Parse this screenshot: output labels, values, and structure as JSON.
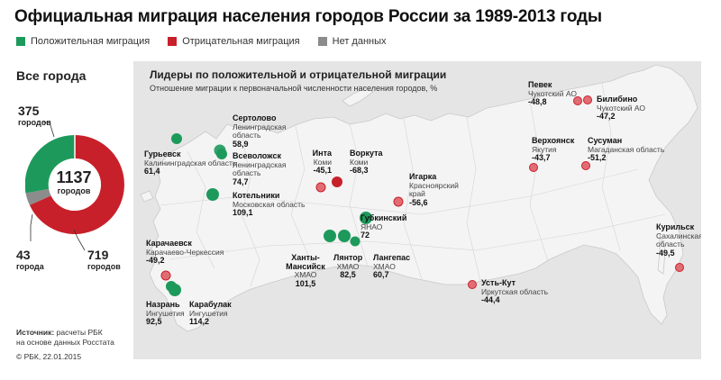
{
  "title": "Официальная миграция населения городов России за 1989-2013 годы",
  "legend": [
    {
      "label": "Положительная миграция",
      "color": "#1d9a5b"
    },
    {
      "label": "Отрицательная миграция",
      "color": "#c8202a"
    },
    {
      "label": "Нет данных",
      "color": "#8c8c8c"
    }
  ],
  "all_cities": {
    "title": "Все города",
    "total": "1137",
    "total_label": "городов",
    "positive": {
      "value": "375",
      "label": "городов"
    },
    "negative": {
      "value": "719",
      "label": "городов"
    },
    "no_data": {
      "value": "43",
      "label": "города"
    }
  },
  "panel": {
    "title": "Лидеры по положительной и отрицательной миграции",
    "subtitle": "Отношение миграции к первоначальной численности населения городов, %"
  },
  "cities": {
    "gurievsk": {
      "name": "Гурьевск",
      "region": "Калининградская область",
      "value": "61,4"
    },
    "sertolovo": {
      "name": "Сертолово",
      "region1": "Ленинградская",
      "region2": "область",
      "value": "58,9"
    },
    "vsevolozhsk": {
      "name": "Всеволожск",
      "region1": "Ленинградская",
      "region2": "область",
      "value": "74,7"
    },
    "kotelniki": {
      "name": "Котельники",
      "region": "Московская область",
      "value": "109,1"
    },
    "karachaevsk": {
      "name": "Карачаевск",
      "region": "Карачаево-Черкессия",
      "value": "-49,2"
    },
    "nazran": {
      "name": "Назрань",
      "region": "Ингушетия",
      "value": "92,5"
    },
    "karabulak": {
      "name": "Карабулак",
      "region": "Ингушетия",
      "value": "114,2"
    },
    "inta": {
      "name": "Инта",
      "region": "Коми",
      "value": "-45,1"
    },
    "vorkuta": {
      "name": "Воркута",
      "region": "Коми",
      "value": "-68,3"
    },
    "igarka": {
      "name": "Игарка",
      "region1": "Красноярский",
      "region2": "край",
      "value": "-56,6"
    },
    "gubkinsky": {
      "name": "Губкинский",
      "region": "ЯНАО",
      "value": "72"
    },
    "khanty": {
      "name1": "Ханты-",
      "name2": "Мансийск",
      "region": "ХМАО",
      "value": "101,5"
    },
    "lyantor": {
      "name": "Лянтор",
      "region": "ХМАО",
      "value": "82,5"
    },
    "langepas": {
      "name": "Лангепас",
      "region": "ХМАО",
      "value": "60,7"
    },
    "ustkut": {
      "name": "Усть-Кут",
      "region": "Иркутская область",
      "value": "-44,4"
    },
    "pevek": {
      "name": "Певек",
      "region": "Чукотский АО",
      "value": "-48,8"
    },
    "bilibino": {
      "name": "Билибино",
      "region": "Чукотский АО",
      "value": "-47,2"
    },
    "verkhoyansk": {
      "name": "Верхоянск",
      "region": "Якутия",
      "value": "-43,7"
    },
    "susuman": {
      "name": "Сусуман",
      "region": "Магаданская область",
      "value": "-51,2"
    },
    "kurilsk": {
      "name": "Курильск",
      "region1": "Сахалинская",
      "region2": "область",
      "value": "-49,5"
    }
  },
  "source": {
    "label": "Источник:",
    "text1": "расчеты РБК",
    "text2": "на основе данных Росстата"
  },
  "copyright": "© РБК, 22.01.2015"
}
